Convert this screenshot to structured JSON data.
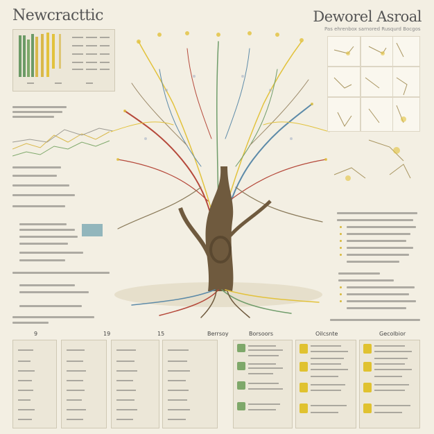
{
  "header": {
    "left_title": "Newcracttic",
    "right_title": "Deworel Asroal",
    "right_subtitle": "Pas ehrenbox sarnored Rusqurd Bocgos"
  },
  "table_columns": [
    {
      "head": "9",
      "rows": 9
    },
    {
      "head": "19",
      "rows": 9
    },
    {
      "head": "15",
      "rows": 9
    },
    {
      "head": "Berrsoy",
      "rows": 9
    }
  ],
  "category_columns": [
    {
      "head": "Borsoors",
      "color": "#7ea86a"
    },
    {
      "head": "Oilcsnte",
      "color": "#e0c230"
    },
    {
      "head": "Gecolbior",
      "color": "#e0c230"
    }
  ],
  "colors": {
    "background": "#f3efe3",
    "trunk": "#6f5a3e",
    "branch_red": "#b5483a",
    "branch_blue": "#5c8aa8",
    "branch_yellow": "#e2c23c",
    "branch_green": "#6f9c6a"
  }
}
